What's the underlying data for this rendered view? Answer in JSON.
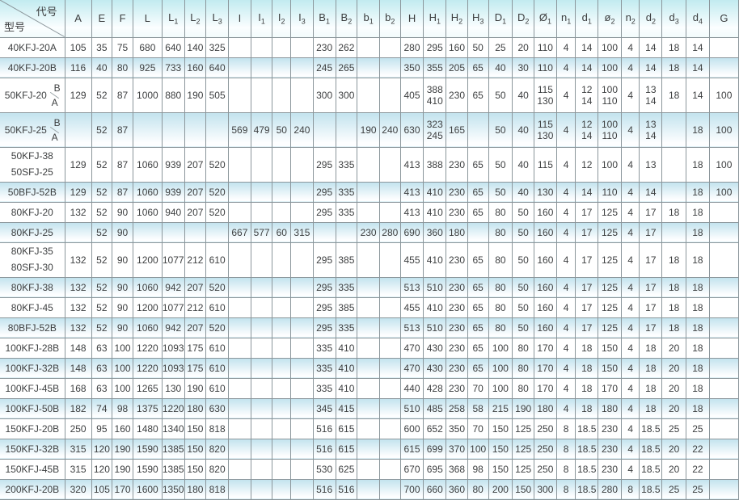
{
  "colors": {
    "header_gradient_top": "#c2ebf0",
    "shaded_row_gradient_top": "#c2e3ee",
    "grid_line": "#8b969b"
  },
  "table": {
    "corner": {
      "top_label": "代号",
      "bottom_label": "型号"
    },
    "columns": [
      {
        "base": "A",
        "sub": ""
      },
      {
        "base": "E",
        "sub": ""
      },
      {
        "base": "F",
        "sub": ""
      },
      {
        "base": "L",
        "sub": ""
      },
      {
        "base": "L",
        "sub": "1"
      },
      {
        "base": "L",
        "sub": "2"
      },
      {
        "base": "L",
        "sub": "3"
      },
      {
        "base": "I",
        "sub": ""
      },
      {
        "base": "I",
        "sub": "1"
      },
      {
        "base": "I",
        "sub": "2"
      },
      {
        "base": "I",
        "sub": "3"
      },
      {
        "base": "B",
        "sub": "1"
      },
      {
        "base": "B",
        "sub": "2"
      },
      {
        "base": "b",
        "sub": "1"
      },
      {
        "base": "b",
        "sub": "2"
      },
      {
        "base": "H",
        "sub": ""
      },
      {
        "base": "H",
        "sub": "1"
      },
      {
        "base": "H",
        "sub": "2"
      },
      {
        "base": "H",
        "sub": "3"
      },
      {
        "base": "D",
        "sub": "1"
      },
      {
        "base": "D",
        "sub": "2"
      },
      {
        "base": "Ø",
        "sub": "1"
      },
      {
        "base": "n",
        "sub": "1"
      },
      {
        "base": "d",
        "sub": "1"
      },
      {
        "base": "ø",
        "sub": "2"
      },
      {
        "base": "n",
        "sub": "2"
      },
      {
        "base": "d",
        "sub": "2"
      },
      {
        "base": "d",
        "sub": "3"
      },
      {
        "base": "d",
        "sub": "4"
      },
      {
        "base": "G",
        "sub": ""
      }
    ],
    "rows": [
      {
        "model": {
          "main": "40KFJ-20A"
        },
        "tall": false,
        "cells": [
          "105",
          "35",
          "75",
          "680",
          "640",
          "140",
          "325",
          "",
          "",
          "",
          "",
          "230",
          "262",
          "",
          "",
          "280",
          "295",
          "160",
          "50",
          "25",
          "20",
          "110",
          "4",
          "14",
          "100",
          "4",
          "14",
          "18",
          "14",
          ""
        ]
      },
      {
        "model": {
          "main": "40KFJ-20B"
        },
        "tall": false,
        "cells": [
          "116",
          "40",
          "80",
          "925",
          "733",
          "160",
          "640",
          "",
          "",
          "",
          "",
          "245",
          "265",
          "",
          "",
          "350",
          "355",
          "205",
          "65",
          "40",
          "30",
          "110",
          "4",
          "14",
          "100",
          "4",
          "14",
          "18",
          "14",
          ""
        ]
      },
      {
        "model": {
          "main": "50KFJ-20",
          "sub_top": "A",
          "sub_bottom": "B"
        },
        "tall": true,
        "cells": [
          "129",
          "52",
          "87",
          "1000",
          "880",
          "190",
          "505",
          "",
          "",
          "",
          "",
          "300",
          "300",
          "",
          "",
          "405",
          {
            "top": "388",
            "bottom": "410"
          },
          "230",
          "65",
          "50",
          "40",
          {
            "top": "115",
            "bottom": "130"
          },
          "4",
          {
            "top": "12",
            "bottom": "14"
          },
          {
            "top": "100",
            "bottom": "110"
          },
          "4",
          {
            "top": "13",
            "bottom": "14"
          },
          "18",
          "14",
          "100"
        ]
      },
      {
        "model": {
          "main": "50KFJ-25",
          "sub_top": "A",
          "sub_bottom": "B"
        },
        "tall": true,
        "cells": [
          "",
          "52",
          "87",
          "",
          "",
          "",
          "",
          "569",
          "479",
          "50",
          "240",
          "",
          "",
          "190",
          "240",
          "630",
          {
            "top": "323",
            "bottom": "245"
          },
          "165",
          "",
          "50",
          "40",
          {
            "top": "115",
            "bottom": "130"
          },
          "4",
          {
            "top": "12",
            "bottom": "14"
          },
          {
            "top": "100",
            "bottom": "110"
          },
          "4",
          {
            "top": "13",
            "bottom": "14"
          },
          "",
          "18",
          "100"
        ]
      },
      {
        "model": {
          "main": "50KFJ-38",
          "line2": "50SFJ-25"
        },
        "tall": true,
        "cells": [
          "129",
          "52",
          "87",
          "1060",
          "939",
          "207",
          "520",
          "",
          "",
          "",
          "",
          "295",
          "335",
          "",
          "",
          "413",
          "388",
          "230",
          "65",
          "50",
          "40",
          "115",
          "4",
          "12",
          "100",
          "4",
          "13",
          "",
          "18",
          "100"
        ]
      },
      {
        "model": {
          "main": "50BFJ-52B"
        },
        "tall": false,
        "cells": [
          "129",
          "52",
          "87",
          "1060",
          "939",
          "207",
          "520",
          "",
          "",
          "",
          "",
          "295",
          "335",
          "",
          "",
          "413",
          "410",
          "230",
          "65",
          "50",
          "40",
          "130",
          "4",
          "14",
          "110",
          "4",
          "14",
          "",
          "18",
          "100"
        ]
      },
      {
        "model": {
          "main": "80KFJ-20"
        },
        "tall": false,
        "cells": [
          "132",
          "52",
          "90",
          "1060",
          "940",
          "207",
          "520",
          "",
          "",
          "",
          "",
          "295",
          "335",
          "",
          "",
          "413",
          "410",
          "230",
          "65",
          "80",
          "50",
          "160",
          "4",
          "17",
          "125",
          "4",
          "17",
          "18",
          "18",
          ""
        ]
      },
      {
        "model": {
          "main": "80KFJ-25"
        },
        "tall": false,
        "cells": [
          "",
          "52",
          "90",
          "",
          "",
          "",
          "",
          "667",
          "577",
          "60",
          "315",
          "",
          "",
          "230",
          "280",
          "690",
          "360",
          "180",
          "",
          "80",
          "50",
          "160",
          "4",
          "17",
          "125",
          "4",
          "17",
          "",
          "18",
          ""
        ]
      },
      {
        "model": {
          "main": "80KFJ-35",
          "line2": "80SFJ-30"
        },
        "tall": true,
        "cells": [
          "132",
          "52",
          "90",
          "1200",
          "1077",
          "212",
          "610",
          "",
          "",
          "",
          "",
          "295",
          "385",
          "",
          "",
          "455",
          "410",
          "230",
          "65",
          "80",
          "50",
          "160",
          "4",
          "17",
          "125",
          "4",
          "17",
          "18",
          "18",
          ""
        ]
      },
      {
        "model": {
          "main": "80KFJ-38"
        },
        "tall": false,
        "cells": [
          "132",
          "52",
          "90",
          "1060",
          "942",
          "207",
          "520",
          "",
          "",
          "",
          "",
          "295",
          "335",
          "",
          "",
          "513",
          "510",
          "230",
          "65",
          "80",
          "50",
          "160",
          "4",
          "17",
          "125",
          "4",
          "17",
          "18",
          "18",
          ""
        ]
      },
      {
        "model": {
          "main": "80KFJ-45"
        },
        "tall": false,
        "cells": [
          "132",
          "52",
          "90",
          "1200",
          "1077",
          "212",
          "610",
          "",
          "",
          "",
          "",
          "295",
          "385",
          "",
          "",
          "455",
          "410",
          "230",
          "65",
          "80",
          "50",
          "160",
          "4",
          "17",
          "125",
          "4",
          "17",
          "18",
          "18",
          ""
        ]
      },
      {
        "model": {
          "main": "80BFJ-52B"
        },
        "tall": false,
        "cells": [
          "132",
          "52",
          "90",
          "1060",
          "942",
          "207",
          "520",
          "",
          "",
          "",
          "",
          "295",
          "335",
          "",
          "",
          "513",
          "510",
          "230",
          "65",
          "80",
          "50",
          "160",
          "4",
          "17",
          "125",
          "4",
          "17",
          "18",
          "18",
          ""
        ]
      },
      {
        "model": {
          "main": "100KFJ-28B"
        },
        "tall": false,
        "cells": [
          "148",
          "63",
          "100",
          "1220",
          "1093",
          "175",
          "610",
          "",
          "",
          "",
          "",
          "335",
          "410",
          "",
          "",
          "470",
          "430",
          "230",
          "65",
          "100",
          "80",
          "170",
          "4",
          "18",
          "150",
          "4",
          "18",
          "20",
          "18",
          ""
        ]
      },
      {
        "model": {
          "main": "100KFJ-32B"
        },
        "tall": false,
        "cells": [
          "148",
          "63",
          "100",
          "1220",
          "1093",
          "175",
          "610",
          "",
          "",
          "",
          "",
          "335",
          "410",
          "",
          "",
          "470",
          "430",
          "230",
          "65",
          "100",
          "80",
          "170",
          "4",
          "18",
          "150",
          "4",
          "18",
          "20",
          "18",
          ""
        ]
      },
      {
        "model": {
          "main": "100KFJ-45B"
        },
        "tall": false,
        "cells": [
          "168",
          "63",
          "100",
          "1265",
          "130",
          "190",
          "610",
          "",
          "",
          "",
          "",
          "335",
          "410",
          "",
          "",
          "440",
          "428",
          "230",
          "70",
          "100",
          "80",
          "170",
          "4",
          "18",
          "170",
          "4",
          "18",
          "20",
          "18",
          ""
        ]
      },
      {
        "model": {
          "main": "100KFJ-50B"
        },
        "tall": false,
        "cells": [
          "182",
          "74",
          "98",
          "1375",
          "1220",
          "180",
          "630",
          "",
          "",
          "",
          "",
          "345",
          "415",
          "",
          "",
          "510",
          "485",
          "258",
          "58",
          "215",
          "190",
          "180",
          "4",
          "18",
          "180",
          "4",
          "18",
          "20",
          "18",
          ""
        ]
      },
      {
        "model": {
          "main": "150KFJ-20B"
        },
        "tall": false,
        "cells": [
          "250",
          "95",
          "160",
          "1480",
          "1340",
          "150",
          "818",
          "",
          "",
          "",
          "",
          "516",
          "615",
          "",
          "",
          "600",
          "652",
          "350",
          "70",
          "150",
          "125",
          "250",
          "8",
          "18.5",
          "230",
          "4",
          "18.5",
          "25",
          "25",
          ""
        ]
      },
      {
        "model": {
          "main": "150KFJ-32B"
        },
        "tall": false,
        "cells": [
          "315",
          "120",
          "190",
          "1590",
          "1385",
          "150",
          "820",
          "",
          "",
          "",
          "",
          "516",
          "615",
          "",
          "",
          "615",
          "699",
          "370",
          "100",
          "150",
          "125",
          "250",
          "8",
          "18.5",
          "230",
          "4",
          "18.5",
          "20",
          "22",
          ""
        ]
      },
      {
        "model": {
          "main": "150KFJ-45B"
        },
        "tall": false,
        "cells": [
          "315",
          "120",
          "190",
          "1590",
          "1385",
          "150",
          "820",
          "",
          "",
          "",
          "",
          "530",
          "625",
          "",
          "",
          "670",
          "695",
          "368",
          "98",
          "150",
          "125",
          "250",
          "8",
          "18.5",
          "230",
          "4",
          "18.5",
          "20",
          "22",
          ""
        ]
      },
      {
        "model": {
          "main": "200KFJ-20B"
        },
        "tall": false,
        "cells": [
          "320",
          "105",
          "170",
          "1600",
          "1350",
          "180",
          "818",
          "",
          "",
          "",
          "",
          "516",
          "516",
          "",
          "",
          "700",
          "660",
          "360",
          "80",
          "200",
          "150",
          "300",
          "8",
          "18.5",
          "280",
          "8",
          "18.5",
          "25",
          "25",
          ""
        ]
      }
    ]
  }
}
